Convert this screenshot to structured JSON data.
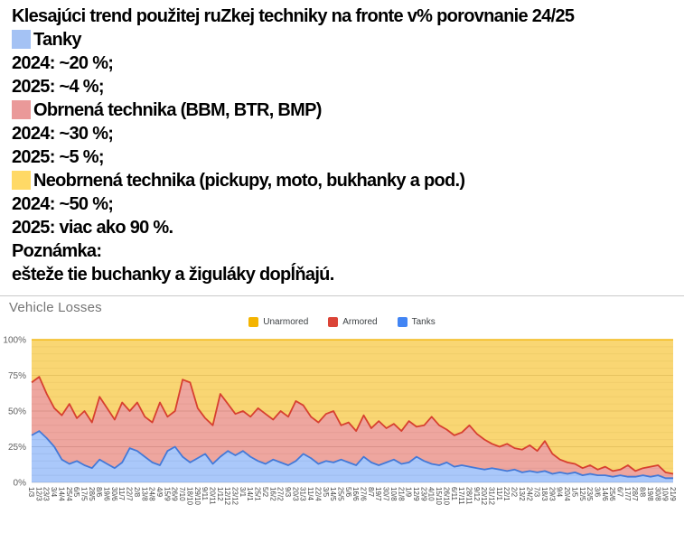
{
  "post": {
    "title": "Klesajúci trend použitej ruZkej techniky na fronte v% porovnanie 24/25",
    "categories": [
      {
        "label": "Tanky",
        "swatch_color": "#A4C2F4",
        "value_2024": "2024: ~20 %;",
        "value_2025": "2025: ~4 %;"
      },
      {
        "label": "Obrnená technika (BBM, BTR, BMP)",
        "swatch_color": "#EA9999",
        "value_2024": "2024: ~30 %;",
        "value_2025": "2025: ~5 %;"
      },
      {
        "label": "Neobrnená technika (pickupy, moto, bukhanky a pod.)",
        "swatch_color": "#FFD966",
        "value_2024": "2024: ~50 %;",
        "value_2025": "2025: viac ako 90 %."
      }
    ],
    "note_label": "Poznámka:",
    "note_text": "ešteže tie buchanky a žiguláky dopĺňajú."
  },
  "chart": {
    "title": "Vehicle Losses",
    "legend": [
      {
        "label": "Unarmored",
        "color": "#F4B400"
      },
      {
        "label": "Armored",
        "color": "#DB4437"
      },
      {
        "label": "Tanks",
        "color": "#4285F4"
      }
    ]
  },
  "chart_data": {
    "type": "area",
    "stacked": true,
    "unit": "percent of daily vehicle losses",
    "title": "Vehicle Losses",
    "ylim": [
      0,
      100
    ],
    "y_ticks": [
      "0%",
      "25%",
      "50%",
      "75%",
      "100%"
    ],
    "grid": "horizontal, minor every 5%",
    "legend_position": "top-center",
    "x_label_rotation": 90,
    "x": [
      "1/3",
      "12/3",
      "23/3",
      "3/4",
      "14/4",
      "25/4",
      "6/5",
      "17/5",
      "28/5",
      "8/6",
      "19/6",
      "30/6",
      "11/7",
      "22/7",
      "2/8",
      "13/8",
      "24/8",
      "4/9",
      "15/9",
      "26/9",
      "7/10",
      "18/10",
      "29/10",
      "9/11",
      "20/11",
      "1/12",
      "12/12",
      "23/12",
      "3/1",
      "14/1",
      "25/1",
      "5/2",
      "16/2",
      "27/2",
      "9/3",
      "20/3",
      "31/3",
      "11/4",
      "22/4",
      "3/5",
      "14/5",
      "25/5",
      "5/6",
      "16/6",
      "27/6",
      "8/7",
      "19/7",
      "30/7",
      "10/8",
      "21/8",
      "1/9",
      "12/9",
      "23/9",
      "4/10",
      "15/10",
      "26/10",
      "6/11",
      "17/11",
      "28/11",
      "9/12",
      "20/12",
      "31/12",
      "11/1",
      "22/1",
      "2/2",
      "13/2",
      "24/2",
      "7/3",
      "18/3",
      "29/3",
      "9/4",
      "20/4",
      "1/5",
      "12/5",
      "23/5",
      "3/6",
      "14/6",
      "25/6",
      "6/7",
      "17/7",
      "28/7",
      "8/8",
      "19/8",
      "30/8",
      "10/9",
      "21/9"
    ],
    "series": [
      {
        "name": "Tanks",
        "color": "#4285F4",
        "fill_opacity": 0.45,
        "values": [
          33,
          36,
          31,
          25,
          16,
          13,
          15,
          12,
          10,
          16,
          13,
          10,
          14,
          24,
          22,
          18,
          14,
          12,
          22,
          25,
          18,
          14,
          17,
          20,
          13,
          18,
          22,
          19,
          22,
          18,
          15,
          13,
          16,
          14,
          12,
          15,
          20,
          17,
          13,
          15,
          14,
          16,
          14,
          12,
          18,
          14,
          12,
          14,
          16,
          13,
          14,
          18,
          15,
          13,
          12,
          14,
          11,
          12,
          11,
          10,
          9,
          10,
          9,
          8,
          9,
          7,
          8,
          7,
          8,
          6,
          7,
          6,
          7,
          5,
          6,
          5,
          5,
          4,
          5,
          4,
          4,
          5,
          4,
          5,
          3,
          3
        ]
      },
      {
        "name": "Armored",
        "color": "#DB4437",
        "fill_opacity": 0.48,
        "values": [
          37,
          38,
          31,
          27,
          31,
          42,
          30,
          38,
          32,
          44,
          39,
          34,
          42,
          26,
          34,
          28,
          28,
          44,
          24,
          25,
          54,
          56,
          35,
          25,
          27,
          44,
          33,
          29,
          28,
          28,
          37,
          35,
          28,
          36,
          34,
          42,
          34,
          29,
          29,
          33,
          36,
          24,
          28,
          24,
          29,
          24,
          31,
          24,
          25,
          23,
          29,
          21,
          25,
          33,
          28,
          23,
          22,
          23,
          29,
          24,
          21,
          17,
          16,
          19,
          15,
          16,
          18,
          15,
          21,
          14,
          9,
          8,
          6,
          5,
          6,
          4,
          6,
          4,
          4,
          8,
          4,
          5,
          7,
          7,
          4,
          3
        ]
      },
      {
        "name": "Unarmored",
        "color": "#F4B400",
        "fill_opacity": 0.55,
        "values": [
          30,
          26,
          38,
          48,
          53,
          45,
          55,
          50,
          58,
          40,
          48,
          56,
          44,
          50,
          44,
          54,
          58,
          44,
          54,
          50,
          28,
          30,
          48,
          55,
          60,
          38,
          45,
          52,
          50,
          54,
          48,
          52,
          56,
          50,
          54,
          43,
          46,
          54,
          58,
          52,
          50,
          60,
          58,
          64,
          53,
          62,
          57,
          62,
          59,
          64,
          57,
          61,
          60,
          54,
          60,
          63,
          67,
          65,
          60,
          66,
          70,
          73,
          75,
          73,
          76,
          77,
          74,
          78,
          71,
          80,
          84,
          86,
          87,
          90,
          88,
          91,
          89,
          92,
          91,
          88,
          92,
          90,
          89,
          88,
          93,
          94
        ]
      }
    ]
  }
}
